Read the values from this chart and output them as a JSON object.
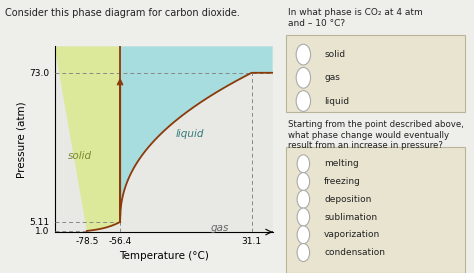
{
  "title": "Consider this phase diagram for carbon dioxide.",
  "xlabel": "Temperature (°C)",
  "ylabel": "Pressure (atm)",
  "xlim": [
    -100,
    45
  ],
  "ylim": [
    0.5,
    85
  ],
  "x_ticks": [
    -78.5,
    -56.4,
    31.1
  ],
  "y_ticks_labeled": [
    1.0,
    5.11,
    73.0
  ],
  "triple_point": [
    -56.4,
    5.11
  ],
  "critical_point": [
    31.1,
    73.0
  ],
  "sublimation_point_x": -78.5,
  "sublimation_point_p": 1.0,
  "bg_color": "#eeeeea",
  "plot_bg": "#f5f5f0",
  "solid_color": "#dce89a",
  "liquid_color": "#a8dde0",
  "gas_color": "#e8e8e4",
  "curve_color": "#8B3A0A",
  "dashed_color": "#888888",
  "arrow_color": "#8B3A0A",
  "label_solid": "solid",
  "label_liquid": "liquid",
  "label_gas": "gas",
  "q1_text": "In what phase is CO₂ at 4 atm\nand – 10 °C?",
  "q1_options": [
    "solid",
    "gas",
    "liquid"
  ],
  "q2_text": "Starting from the point described above,\nwhat phase change would eventually\nresult from an increase in pressure?",
  "q2_options": [
    "melting",
    "freezing",
    "deposition",
    "sublimation",
    "vaporization",
    "condensation"
  ],
  "right_panel_bg": "#eeeeea",
  "box_bg": "#e8e4d0",
  "box_edge": "#b8b49a"
}
